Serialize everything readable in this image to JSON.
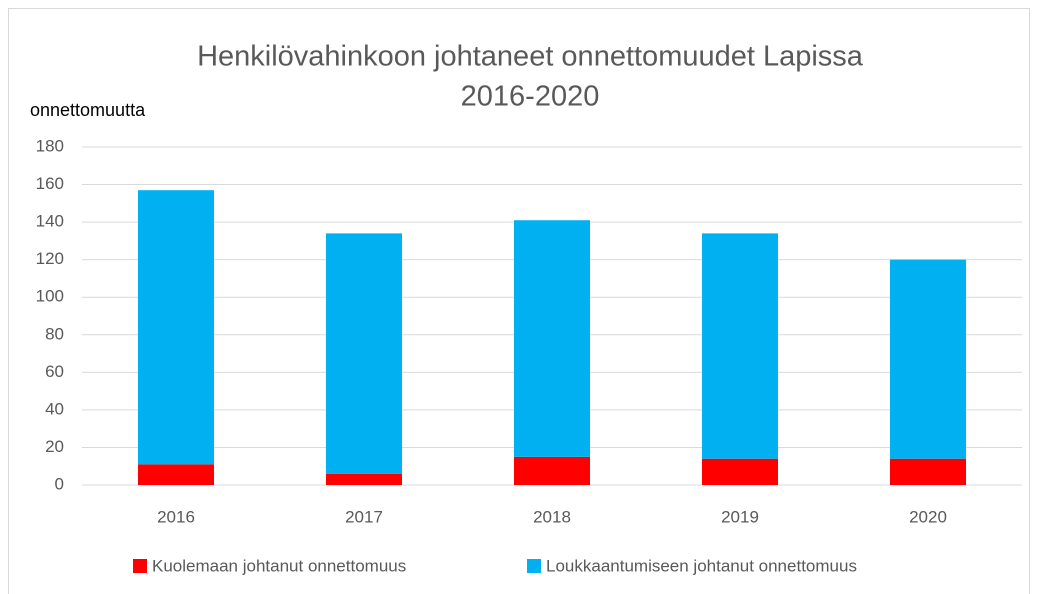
{
  "chart_data": {
    "type": "stacked_bar",
    "title": [
      "Henkilövahinkoon johtaneet onnettomuudet Lapissa",
      "2016-2020"
    ],
    "y_label": "onnettomuutta",
    "categories": [
      "2016",
      "2017",
      "2018",
      "2019",
      "2020"
    ],
    "series": [
      {
        "name": "Kuolemaan johtanut onnettomuus",
        "color": "#ff0000",
        "values": [
          11,
          6,
          15,
          14,
          14
        ]
      },
      {
        "name": "Loukkaantumiseen johtanut onnettomuus",
        "color": "#00b0f0",
        "values": [
          146,
          128,
          126,
          120,
          106
        ]
      }
    ],
    "ylim": [
      0,
      180
    ],
    "yticks": [
      0,
      20,
      40,
      60,
      80,
      100,
      120,
      140,
      160,
      180
    ],
    "grid": true,
    "legend": "bottom"
  }
}
